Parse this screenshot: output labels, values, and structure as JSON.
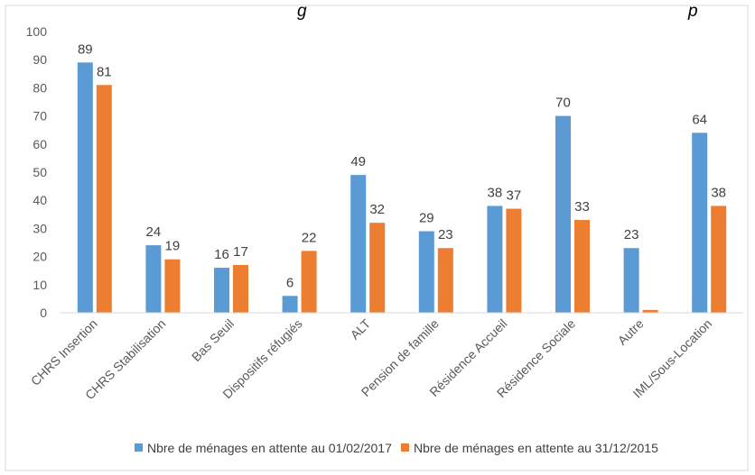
{
  "chart_data": {
    "type": "bar",
    "categories": [
      "CHRS Insertion",
      "CHRS Stabilisation",
      "Bas Seuil",
      "Dispositifs réfugiés",
      "ALT",
      "Pension de famille",
      "Résidence Accueil",
      "Résidence Sociale",
      "Autre",
      "IML/Sous-Location"
    ],
    "series": [
      {
        "name": "Nbre de ménages en attente au 01/02/2017",
        "color": "#5B9BD5",
        "values": [
          89,
          24,
          16,
          6,
          49,
          29,
          38,
          70,
          23,
          64
        ],
        "labels": [
          "89",
          "24",
          "16",
          "6",
          "49",
          "29",
          "38",
          "70",
          "23",
          "64"
        ]
      },
      {
        "name": "Nbre de ménages en attente au 31/12/2015",
        "color": "#ED7D31",
        "values": [
          81,
          19,
          17,
          22,
          32,
          23,
          37,
          33,
          1,
          38
        ],
        "labels": [
          "81",
          "19",
          "17",
          "22",
          "32",
          "23",
          "37",
          "33",
          "",
          "38"
        ]
      }
    ],
    "ylim": [
      0,
      100
    ],
    "yticks": [
      "0",
      "10",
      "20",
      "30",
      "40",
      "50",
      "60",
      "70",
      "80",
      "90",
      "100"
    ],
    "grid": false,
    "legend_position": "bottom",
    "title_fragments": [
      "g",
      "p"
    ]
  }
}
